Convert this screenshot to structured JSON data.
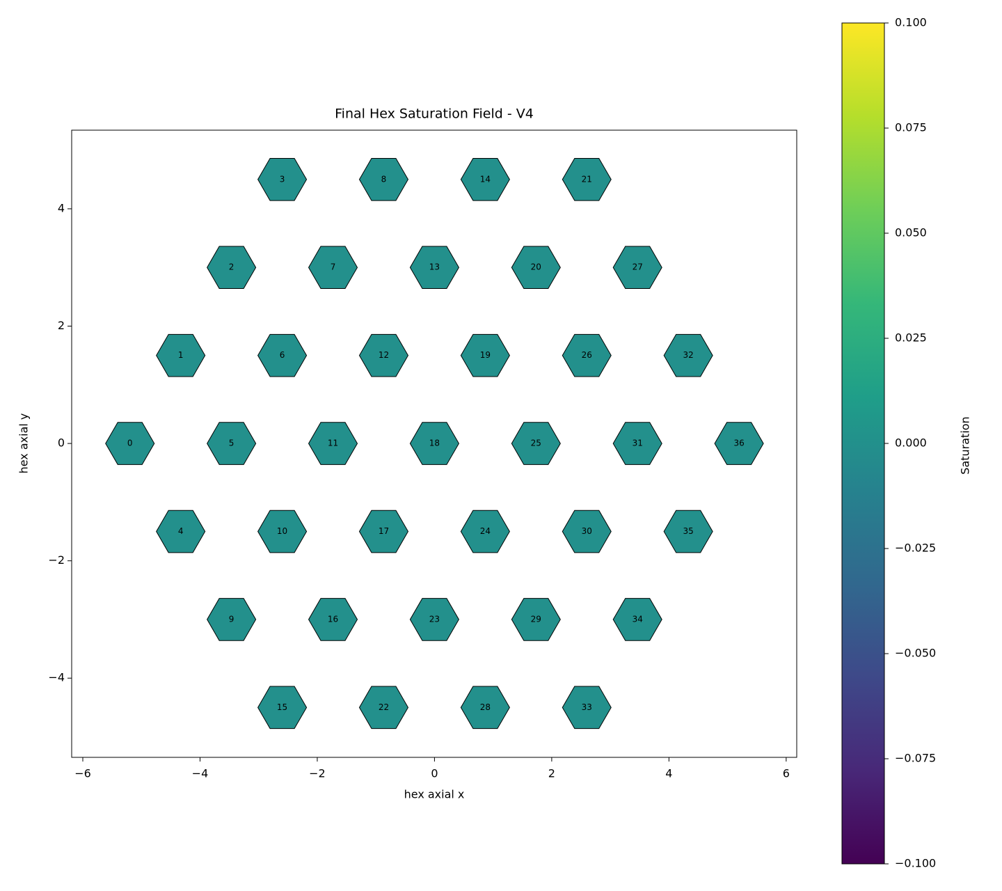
{
  "chart_data": {
    "type": "hexmap",
    "title": "Final Hex Saturation Field - V4",
    "xlabel": "hex axial x",
    "ylabel": "hex axial y",
    "colorbar_label": "Saturation",
    "ids": [
      0,
      1,
      2,
      3,
      4,
      5,
      6,
      7,
      8,
      9,
      10,
      11,
      12,
      13,
      14,
      15,
      16,
      17,
      18,
      19,
      20,
      21,
      22,
      23,
      24,
      25,
      26,
      27,
      28,
      29,
      30,
      31,
      32,
      33,
      34,
      35,
      36
    ],
    "x": [
      -5.196,
      -4.33,
      -3.464,
      -2.598,
      -4.33,
      -3.464,
      -2.598,
      -1.732,
      -0.866,
      -3.464,
      -2.598,
      -1.732,
      -0.866,
      0,
      0.866,
      -2.598,
      -1.732,
      -0.866,
      0,
      0.866,
      1.732,
      2.598,
      -0.866,
      0,
      0.866,
      1.732,
      2.598,
      3.464,
      0.866,
      1.732,
      2.598,
      3.464,
      4.33,
      2.598,
      3.464,
      4.33,
      5.196
    ],
    "y": [
      0,
      1.5,
      3,
      4.5,
      -1.5,
      0,
      1.5,
      3,
      4.5,
      -3,
      -1.5,
      0,
      1.5,
      3,
      4.5,
      -4.5,
      -3,
      -1.5,
      0,
      1.5,
      3,
      4.5,
      -4.5,
      -3,
      -1.5,
      0,
      1.5,
      3,
      -4.5,
      -3,
      -1.5,
      0,
      1.5,
      -4.5,
      -3,
      -1.5,
      0
    ],
    "values": [
      0,
      0,
      0,
      0,
      0,
      0,
      0,
      0,
      0,
      0,
      0,
      0,
      0,
      0,
      0,
      0,
      0,
      0,
      0,
      0,
      0,
      0,
      0,
      0,
      0,
      0,
      0,
      0,
      0,
      0,
      0,
      0,
      0,
      0,
      0,
      0,
      0
    ],
    "xlim": [
      -6.19,
      6.18
    ],
    "ylim": [
      -5.35,
      5.34
    ],
    "xticks": [
      {
        "value": -6,
        "label": "−6"
      },
      {
        "value": -4,
        "label": "−4"
      },
      {
        "value": -2,
        "label": "−2"
      },
      0,
      2,
      4,
      6
    ],
    "yticks": [
      {
        "value": -4,
        "label": "−4"
      },
      {
        "value": -2,
        "label": "−2"
      },
      0,
      2,
      4
    ],
    "clim": [
      -0.1,
      0.1
    ],
    "cticks": [
      {
        "value": -0.1,
        "label": "−0.100"
      },
      {
        "value": -0.075,
        "label": "−0.075"
      },
      {
        "value": -0.05,
        "label": "−0.050"
      },
      {
        "value": -0.025,
        "label": "−0.025"
      },
      {
        "value": 0,
        "label": "0.000"
      },
      {
        "value": 0.025,
        "label": "0.025"
      },
      {
        "value": 0.05,
        "label": "0.050"
      },
      {
        "value": 0.075,
        "label": "0.075"
      },
      {
        "value": 0.1,
        "label": "0.100"
      }
    ],
    "colormap": [
      "#440154",
      "#482878",
      "#3e4989",
      "#31688e",
      "#26828e",
      "#1f9e89",
      "#35b779",
      "#6ece58",
      "#b5de2b",
      "#fde725"
    ],
    "edge_color": "#000000"
  }
}
